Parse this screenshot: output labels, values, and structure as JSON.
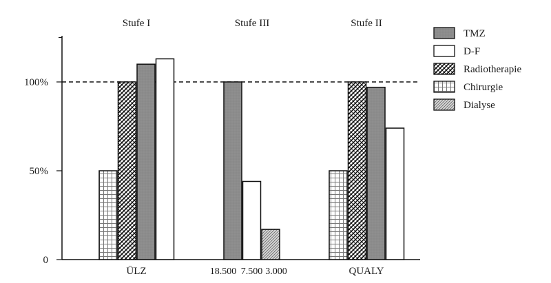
{
  "chart_data": {
    "type": "bar",
    "title": "",
    "xlabel": "",
    "ylabel": "",
    "ylim": [
      0,
      1.3
    ],
    "yticks": [
      {
        "value": 0,
        "label": "0"
      },
      {
        "value": 0.5,
        "label": "50%"
      },
      {
        "value": 1.0,
        "label": "100%"
      }
    ],
    "reference_line": {
      "value": 1.0,
      "style": "dashed"
    },
    "grid": false,
    "legend_position": "right",
    "groups": [
      {
        "top_label": "Stufe I",
        "bottom_label": "ÜLZ",
        "bars": [
          {
            "series": "Chirurgie",
            "value": 0.5
          },
          {
            "series": "Radiotherapie",
            "value": 1.0
          },
          {
            "series": "TMZ",
            "value": 1.1
          },
          {
            "series": "D-F",
            "value": 1.13
          }
        ]
      },
      {
        "top_label": "Stufe III",
        "bottom_label": "",
        "bars": [
          {
            "series": "TMZ",
            "value": 1.0,
            "bottom_label": "18.500"
          },
          {
            "series": "D-F",
            "value": 0.44,
            "bottom_label": "7.500"
          },
          {
            "series": "Dialyse",
            "value": 0.17,
            "bottom_label": "3.000"
          }
        ]
      },
      {
        "top_label": "Stufe II",
        "bottom_label": "QUALY",
        "bars": [
          {
            "series": "Chirurgie",
            "value": 0.5
          },
          {
            "series": "Radiotherapie",
            "value": 1.0
          },
          {
            "series": "TMZ",
            "value": 0.97
          },
          {
            "series": "D-F",
            "value": 0.74
          }
        ]
      }
    ],
    "legend": [
      {
        "name": "TMZ",
        "pattern": "solid-gray"
      },
      {
        "name": "D-F",
        "pattern": "white"
      },
      {
        "name": "Radiotherapie",
        "pattern": "crosshatch"
      },
      {
        "name": "Chirurgie",
        "pattern": "grid"
      },
      {
        "name": "Dialyse",
        "pattern": "diagonal"
      }
    ],
    "colors": {
      "TMZ": "#8c8c8c",
      "D-F": "#ffffff",
      "outline": "#111111"
    }
  }
}
